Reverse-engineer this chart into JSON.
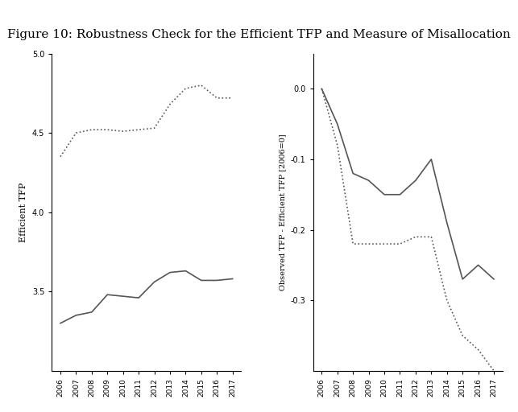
{
  "title": "Figure 10: Robustness Check for the Efficient TFP and Measure of Misallocation",
  "title_fontsize": 11,
  "years": [
    2006,
    2007,
    2008,
    2009,
    2010,
    2011,
    2012,
    2013,
    2014,
    2015,
    2016,
    2017
  ],
  "left_dotted": [
    4.35,
    4.5,
    4.52,
    4.52,
    4.51,
    4.52,
    4.53,
    4.68,
    4.78,
    4.8,
    4.72,
    4.72
  ],
  "left_solid": [
    3.3,
    3.35,
    3.37,
    3.48,
    3.47,
    3.46,
    3.56,
    3.62,
    3.63,
    3.57,
    3.57,
    3.58
  ],
  "left_ylabel": "Efficient TFP",
  "left_ylim": [
    3.0,
    5.0
  ],
  "left_yticks": [
    3.5,
    4.0,
    4.5,
    5.0
  ],
  "right_dotted": [
    0.0,
    -0.08,
    -0.22,
    -0.22,
    -0.22,
    -0.22,
    -0.21,
    -0.21,
    -0.3,
    -0.35,
    -0.37,
    -0.4
  ],
  "right_solid": [
    0.0,
    -0.05,
    -0.12,
    -0.13,
    -0.15,
    -0.15,
    -0.13,
    -0.1,
    -0.19,
    -0.27,
    -0.25,
    -0.27
  ],
  "right_ylabel": "Observed TFP - Efficient TFP [2006=0]",
  "right_ylim": [
    -0.4,
    0.05
  ],
  "right_yticks": [
    0.0,
    -0.1,
    -0.2,
    -0.3
  ],
  "line_color": "#555555",
  "bg_color": "#ffffff",
  "figure_bg": "#f0f0f0"
}
